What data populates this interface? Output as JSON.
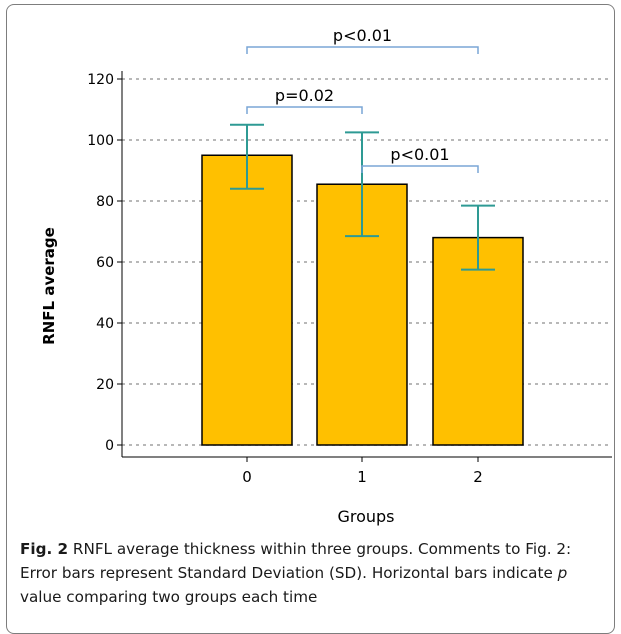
{
  "chart_data": {
    "type": "bar",
    "categories": [
      "0",
      "1",
      "2"
    ],
    "values": [
      95,
      85.5,
      68
    ],
    "error": [
      {
        "upper": 105,
        "lower": 84
      },
      {
        "upper": 102.5,
        "lower": 68.5
      },
      {
        "upper": 78.5,
        "lower": 57.5
      }
    ],
    "xlabel": "Groups",
    "ylabel": "RNFL average",
    "ylim": [
      0,
      120
    ],
    "yticks": [
      0,
      20,
      40,
      60,
      80,
      100,
      120
    ],
    "grid": true,
    "comparisons": [
      {
        "from": "0",
        "to": "2",
        "label": "p<0.01",
        "level": "top"
      },
      {
        "from": "0",
        "to": "1",
        "label": "p=0.02",
        "level": "middle"
      },
      {
        "from": "1",
        "to": "2",
        "label": "p<0.01",
        "level": "lower"
      }
    ],
    "colors": {
      "bar": "#ffc000",
      "bar_stroke": "#000000",
      "error": "#2e9a94",
      "bracket": "#7aa6d6",
      "grid": "#a0a0a0"
    }
  },
  "caption": {
    "fig_label": "Fig. 2",
    "text_part1": " RNFL average thickness within three groups. Comments to Fig. 2: Error bars represent Standard Deviation (SD). Horizontal bars indicate ",
    "p_symbol": "p",
    "text_part2": " value comparing two groups each time"
  }
}
